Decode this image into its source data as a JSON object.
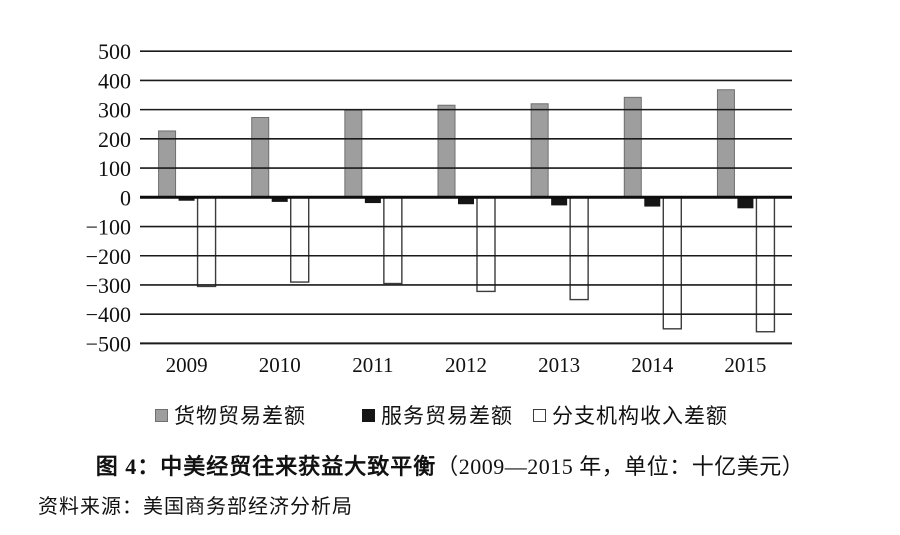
{
  "figure": {
    "caption_main": "图 4：中美经贸往来获益大致平衡",
    "caption_paren": "（2009—2015 年，单位：十亿美元）",
    "source_note": "资料来源：美国商务部经济分析局"
  },
  "chart_data": {
    "type": "bar",
    "title": "中美经贸往来获益大致平衡",
    "subtitle": "2009—2015 年，单位：十亿美元",
    "categories": [
      "2009",
      "2010",
      "2011",
      "2012",
      "2013",
      "2014",
      "2015"
    ],
    "series": [
      {
        "name": "货物贸易差额",
        "values": [
          227,
          273,
          298,
          315,
          320,
          342,
          368
        ],
        "fill": "#9e9e9e",
        "stroke": "#6f6f6f"
      },
      {
        "name": "服务贸易差额",
        "values": [
          -10,
          -14,
          -18,
          -22,
          -26,
          -30,
          -36
        ],
        "fill": "#151515",
        "stroke": "#151515"
      },
      {
        "name": "分支机构收入差额",
        "values": [
          -305,
          -290,
          -295,
          -322,
          -350,
          -450,
          -460
        ],
        "fill": "#ffffff",
        "stroke": "#3c3c3c"
      }
    ],
    "ylim": [
      -500,
      500
    ],
    "ytick_step": 100,
    "ytick_labels": [
      "−500",
      "−400",
      "−300",
      "−200",
      "−100",
      "0",
      "100",
      "200",
      "300",
      "400",
      "500"
    ],
    "grid": true,
    "legend_position": "bottom",
    "axis_color": "#1a1a1a",
    "zero_line_color": "#0d0d0d"
  }
}
